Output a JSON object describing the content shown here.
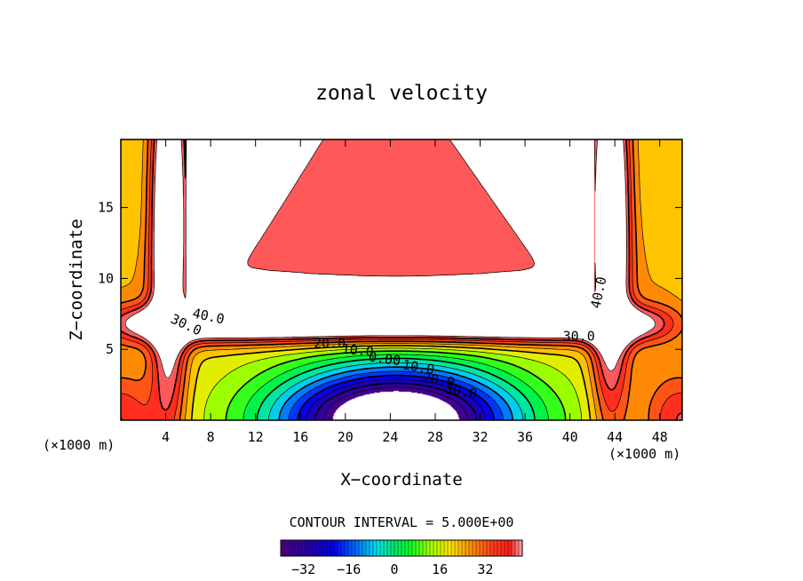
{
  "chart_data": {
    "type": "heatmap",
    "title": "zonal velocity",
    "xlabel": "X−coordinate",
    "ylabel": "Z−coordinate",
    "x_unit": "(×1000 m)",
    "y_unit": "(×1000 m)",
    "xlim": [
      0,
      50
    ],
    "ylim": [
      0,
      19.8
    ],
    "x_ticks": [
      4,
      8,
      12,
      16,
      20,
      24,
      28,
      32,
      36,
      40,
      44,
      48
    ],
    "x_tick_labels": [
      "4",
      "8",
      "12",
      "16",
      "20",
      "24",
      "28",
      "32",
      "36",
      "40",
      "44",
      "48"
    ],
    "y_ticks": [
      5,
      10,
      15
    ],
    "y_tick_labels": [
      "5",
      "10",
      "15"
    ],
    "value_range": [
      -40,
      45
    ],
    "contour_interval_text": "CONTOUR INTERVAL = 5.000E+00",
    "contour_labels": [
      {
        "text": "40.0",
        "x": 7.8,
        "z": 7.3,
        "angle": 12
      },
      {
        "text": "30.0",
        "x": 5.8,
        "z": 6.7,
        "angle": 25
      },
      {
        "text": "20.0",
        "x": 18.6,
        "z": 5.4,
        "angle": 0
      },
      {
        "text": "10.0",
        "x": 21.1,
        "z": 4.9,
        "angle": 6
      },
      {
        "text": "0.00",
        "x": 23.5,
        "z": 4.3,
        "angle": 8
      },
      {
        "text": "10.0",
        "x": 26.5,
        "z": 3.7,
        "angle": 10
      },
      {
        "text": "20.0",
        "x": 28.3,
        "z": 2.8,
        "angle": 10
      },
      {
        "text": "30.0",
        "x": 30.3,
        "z": 2.0,
        "angle": 10
      },
      {
        "text": "30.0",
        "x": 40.8,
        "z": 5.9,
        "angle": 0
      },
      {
        "text": "40.0",
        "x": 42.6,
        "z": 9.0,
        "angle": -78
      }
    ],
    "colorbar": {
      "ticks": [
        -32,
        -16,
        0,
        16,
        32
      ],
      "tick_labels": [
        "−32",
        "−16",
        "0",
        "16",
        "32"
      ]
    },
    "colors": {
      "negative_deep": "#4b0082",
      "zero": "#00ff40",
      "positive_peak": "#ff2020",
      "saturated": "#ffffff"
    }
  }
}
